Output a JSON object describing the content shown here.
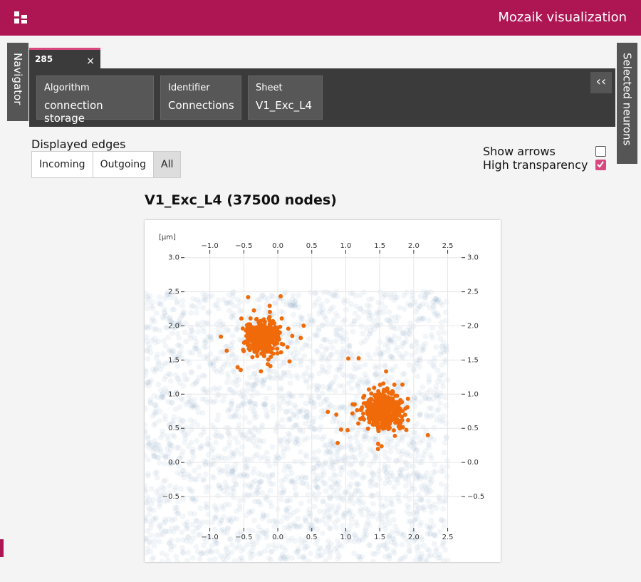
{
  "header": {
    "title": "Mozaik visualization"
  },
  "sidebar_left": "Navigator",
  "sidebar_right": "Selected neurons",
  "tab": {
    "label": "285",
    "close": "×"
  },
  "filters": [
    {
      "label": "Algorithm",
      "value": "connection storage"
    },
    {
      "label": "Identifier",
      "value": "Connections"
    },
    {
      "label": "Sheet",
      "value": "V1_Exc_L4"
    }
  ],
  "displayed_edges": {
    "label": "Displayed edges",
    "options": [
      "Incoming",
      "Outgoing",
      "All"
    ],
    "selected": 2
  },
  "options": [
    {
      "label": "Show arrows",
      "checked": false
    },
    {
      "label": "High transparency",
      "checked": true
    }
  ],
  "chart_data": {
    "type": "scatter",
    "title": "V1_Exc_L4 (37500 nodes)",
    "axis_label": "[µm]",
    "xlim": [
      -1.96,
      3.28
    ],
    "ylim": [
      -1.46,
      3.55
    ],
    "xticks": [
      {
        "value": -1.0,
        "label": "−1.0"
      },
      {
        "value": -0.5,
        "label": "−0.5"
      },
      {
        "value": 0.0,
        "label": "0.0"
      },
      0.5,
      {
        "value": 1.0,
        "label": "1.0"
      },
      1.5,
      {
        "value": 2.0,
        "label": "2.0"
      },
      2.5
    ],
    "yticks": [
      {
        "value": 3.0,
        "label": "3.0"
      },
      2.5,
      {
        "value": 2.0,
        "label": "2.0"
      },
      1.5,
      {
        "value": 1.0,
        "label": "1.0"
      },
      0.5,
      {
        "value": 0.0,
        "label": "0.0"
      },
      {
        "value": -0.5,
        "label": "−0.5"
      }
    ],
    "grid": true
  }
}
